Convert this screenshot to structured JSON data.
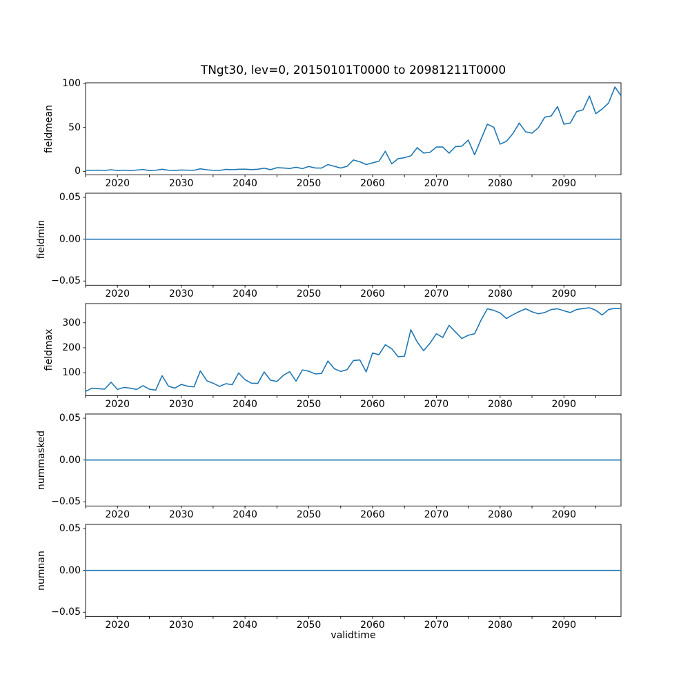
{
  "figure": {
    "title": "TNgt30, lev=0, 20150101T0000 to 20981211T0000",
    "xlabel": "validtime",
    "line_color": "#1f77b4",
    "background_color": "#ffffff",
    "text_color": "#000000",
    "xlim": [
      2015,
      2098.95
    ],
    "xticks": {
      "values": [
        2015,
        2020,
        2025,
        2030,
        2035,
        2040,
        2045,
        2050,
        2055,
        2060,
        2065,
        2070,
        2075,
        2080,
        2085,
        2090,
        2095
      ],
      "labels": [
        "",
        "2020",
        "",
        "2030",
        "",
        "2040",
        "",
        "2050",
        "",
        "2060",
        "",
        "2070",
        "",
        "2080",
        "",
        "2090",
        ""
      ]
    },
    "x_years": [
      2015,
      2016,
      2017,
      2018,
      2019,
      2020,
      2021,
      2022,
      2023,
      2024,
      2025,
      2026,
      2027,
      2028,
      2029,
      2030,
      2031,
      2032,
      2033,
      2034,
      2035,
      2036,
      2037,
      2038,
      2039,
      2040,
      2041,
      2042,
      2043,
      2044,
      2045,
      2046,
      2047,
      2048,
      2049,
      2050,
      2051,
      2052,
      2053,
      2054,
      2055,
      2056,
      2057,
      2058,
      2059,
      2060,
      2061,
      2062,
      2063,
      2064,
      2065,
      2066,
      2067,
      2068,
      2069,
      2070,
      2071,
      2072,
      2073,
      2074,
      2075,
      2076,
      2077,
      2078,
      2079,
      2080,
      2081,
      2082,
      2083,
      2084,
      2085,
      2086,
      2087,
      2088,
      2089,
      2090,
      2091,
      2092,
      2093,
      2094,
      2095,
      2096,
      2097,
      2098,
      2098.95
    ]
  },
  "chart_data": [
    {
      "type": "line",
      "name": "fieldmean",
      "ylabel": "fieldmean",
      "ylim": [
        -3.86,
        100.76
      ],
      "yticks": {
        "values": [
          0,
          50,
          100
        ],
        "labels": [
          "0",
          "50",
          "100"
        ]
      },
      "values": [
        1.4,
        1.2,
        1.4,
        1.1,
        1.9,
        1.0,
        1.4,
        0.9,
        1.5,
        2.2,
        1.0,
        1.3,
        2.4,
        1.3,
        1.1,
        1.6,
        1.4,
        1.3,
        2.9,
        1.9,
        1.2,
        1.1,
        2.3,
        1.9,
        2.4,
        2.5,
        2.0,
        2.4,
        3.7,
        2.0,
        4.2,
        3.9,
        3.3,
        4.7,
        3.2,
        5.6,
        3.9,
        3.8,
        7.8,
        5.8,
        3.8,
        5.8,
        13.0,
        11.0,
        7.8,
        9.7,
        11.6,
        22.9,
        8.6,
        14.5,
        15.6,
        17.7,
        27.0,
        20.9,
        21.7,
        27.7,
        27.7,
        20.8,
        28.2,
        28.7,
        35.7,
        18.9,
        36.5,
        53.7,
        50.2,
        31.0,
        34.3,
        43.0,
        55.0,
        45.0,
        43.5,
        49.7,
        61.7,
        63.0,
        73.7,
        53.7,
        55.0,
        68.0,
        70.0,
        85.7,
        65.7,
        71.0,
        77.7,
        96.0,
        86.0
      ]
    },
    {
      "type": "line",
      "name": "fieldmin",
      "ylabel": "fieldmin",
      "ylim": [
        -0.055,
        0.055
      ],
      "yticks": {
        "values": [
          -0.05,
          0.0,
          0.05
        ],
        "labels": [
          "−0.05",
          "0.00",
          "0.05"
        ]
      },
      "values": [
        0,
        0,
        0,
        0,
        0,
        0,
        0,
        0,
        0,
        0,
        0,
        0,
        0,
        0,
        0,
        0,
        0,
        0,
        0,
        0,
        0,
        0,
        0,
        0,
        0,
        0,
        0,
        0,
        0,
        0,
        0,
        0,
        0,
        0,
        0,
        0,
        0,
        0,
        0,
        0,
        0,
        0,
        0,
        0,
        0,
        0,
        0,
        0,
        0,
        0,
        0,
        0,
        0,
        0,
        0,
        0,
        0,
        0,
        0,
        0,
        0,
        0,
        0,
        0,
        0,
        0,
        0,
        0,
        0,
        0,
        0,
        0,
        0,
        0,
        0,
        0,
        0,
        0,
        0,
        0,
        0,
        0,
        0,
        0,
        0
      ]
    },
    {
      "type": "line",
      "name": "fieldmax",
      "ylabel": "fieldmax",
      "ylim": [
        8.25,
        376.75
      ],
      "yticks": {
        "values": [
          100,
          200,
          300
        ],
        "labels": [
          "100",
          "200",
          "300"
        ]
      },
      "values": [
        25,
        38,
        36,
        34,
        62,
        33,
        41,
        38,
        33,
        48,
        34,
        30,
        88,
        46,
        38,
        53,
        46,
        43,
        107,
        68,
        58,
        45,
        56,
        52,
        99,
        72,
        58,
        57,
        103,
        70,
        65,
        89,
        104,
        66,
        111,
        106,
        95,
        97,
        147,
        116,
        105,
        112,
        149,
        151,
        103,
        179,
        172,
        212,
        196,
        164,
        166,
        272,
        223,
        188,
        218,
        256,
        241,
        290,
        263,
        237,
        250,
        256,
        310,
        356,
        350,
        339,
        317,
        332,
        345,
        356,
        344,
        336,
        341,
        353,
        356,
        348,
        341,
        353,
        357,
        360,
        350,
        331,
        353,
        358,
        356
      ]
    },
    {
      "type": "line",
      "name": "nummasked",
      "ylabel": "nummasked",
      "ylim": [
        -0.055,
        0.055
      ],
      "yticks": {
        "values": [
          -0.05,
          0.0,
          0.05
        ],
        "labels": [
          "−0.05",
          "0.00",
          "0.05"
        ]
      },
      "values": [
        0,
        0,
        0,
        0,
        0,
        0,
        0,
        0,
        0,
        0,
        0,
        0,
        0,
        0,
        0,
        0,
        0,
        0,
        0,
        0,
        0,
        0,
        0,
        0,
        0,
        0,
        0,
        0,
        0,
        0,
        0,
        0,
        0,
        0,
        0,
        0,
        0,
        0,
        0,
        0,
        0,
        0,
        0,
        0,
        0,
        0,
        0,
        0,
        0,
        0,
        0,
        0,
        0,
        0,
        0,
        0,
        0,
        0,
        0,
        0,
        0,
        0,
        0,
        0,
        0,
        0,
        0,
        0,
        0,
        0,
        0,
        0,
        0,
        0,
        0,
        0,
        0,
        0,
        0,
        0,
        0,
        0,
        0,
        0,
        0
      ]
    },
    {
      "type": "line",
      "name": "numnan",
      "ylabel": "numnan",
      "ylim": [
        -0.055,
        0.055
      ],
      "yticks": {
        "values": [
          -0.05,
          0.0,
          0.05
        ],
        "labels": [
          "−0.05",
          "0.00",
          "0.05"
        ]
      },
      "values": [
        0,
        0,
        0,
        0,
        0,
        0,
        0,
        0,
        0,
        0,
        0,
        0,
        0,
        0,
        0,
        0,
        0,
        0,
        0,
        0,
        0,
        0,
        0,
        0,
        0,
        0,
        0,
        0,
        0,
        0,
        0,
        0,
        0,
        0,
        0,
        0,
        0,
        0,
        0,
        0,
        0,
        0,
        0,
        0,
        0,
        0,
        0,
        0,
        0,
        0,
        0,
        0,
        0,
        0,
        0,
        0,
        0,
        0,
        0,
        0,
        0,
        0,
        0,
        0,
        0,
        0,
        0,
        0,
        0,
        0,
        0,
        0,
        0,
        0,
        0,
        0,
        0,
        0,
        0,
        0,
        0,
        0,
        0,
        0,
        0
      ]
    }
  ]
}
